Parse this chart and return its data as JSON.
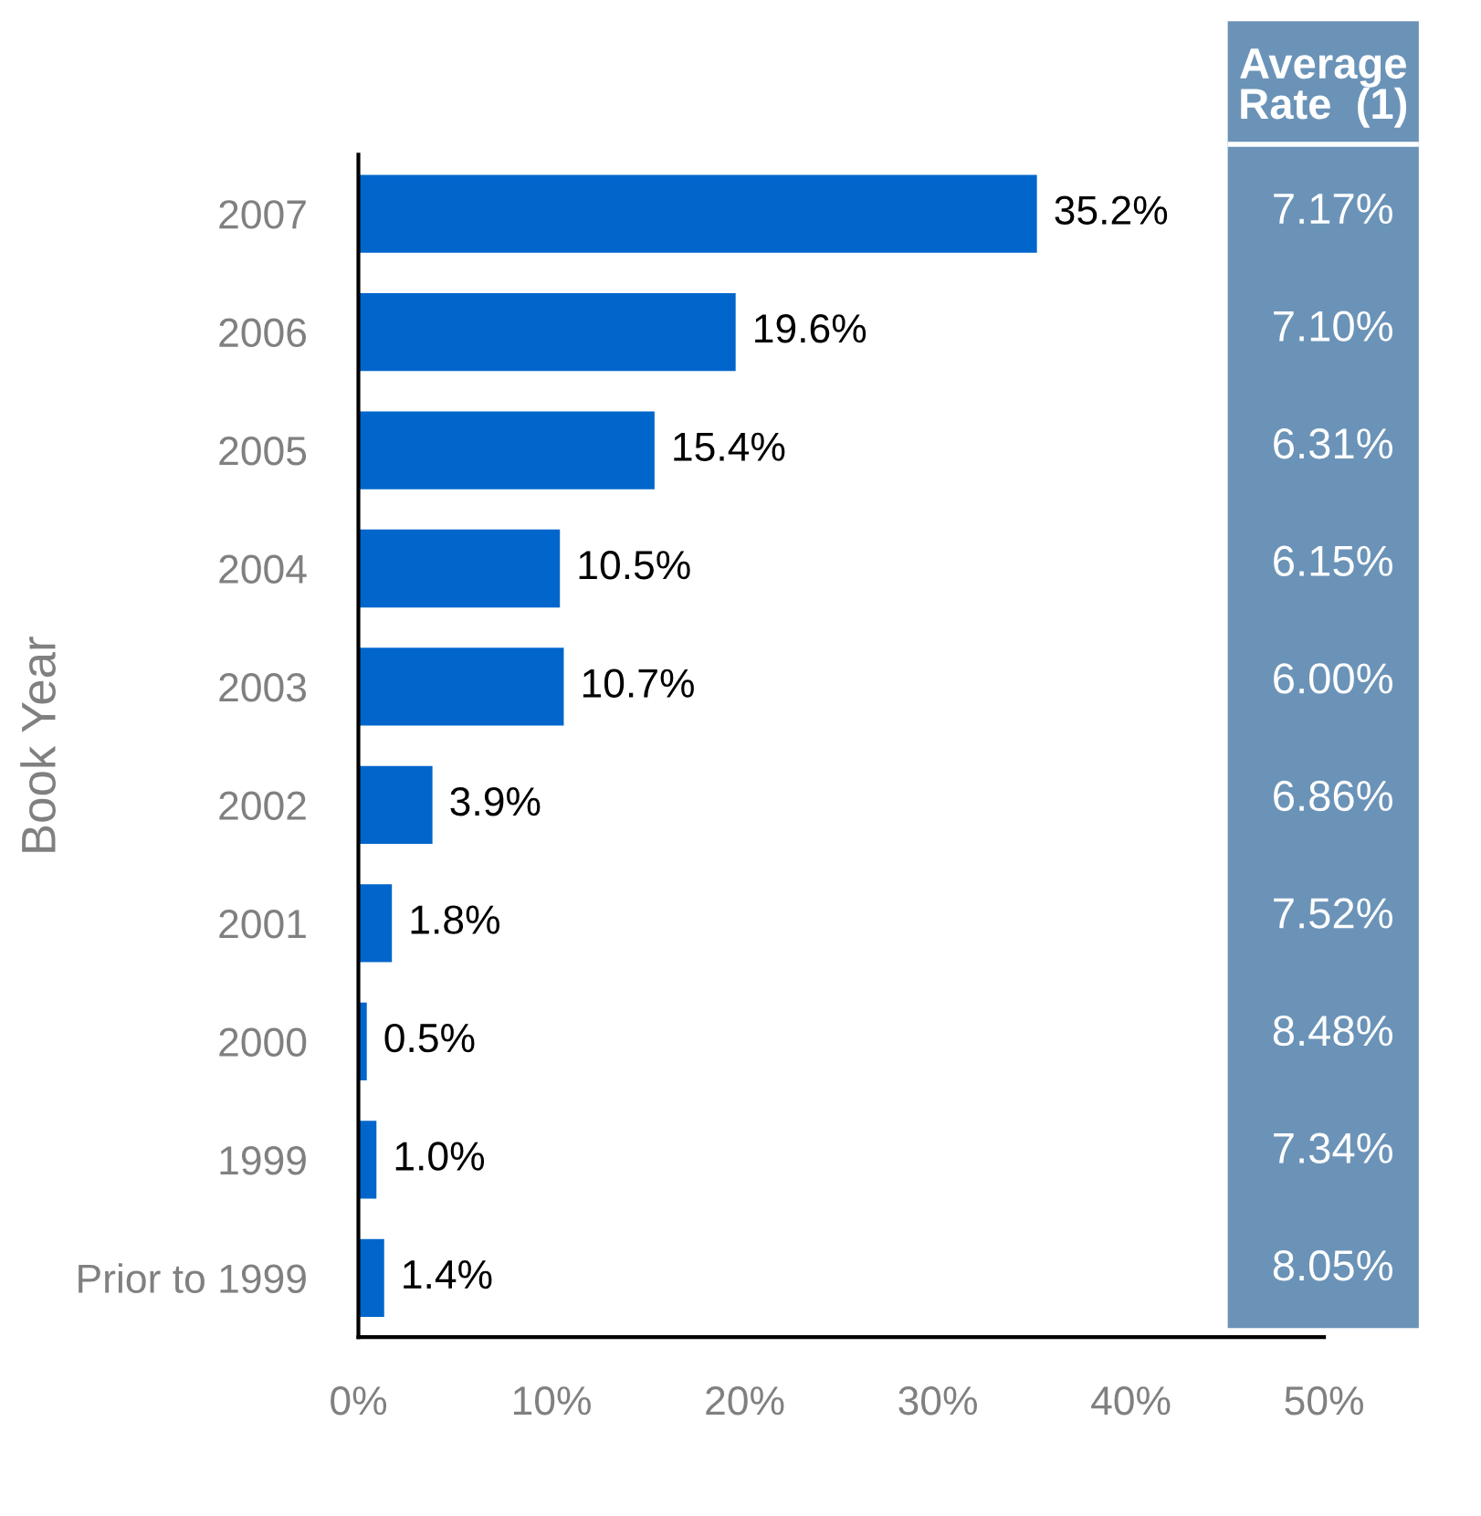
{
  "chart_data": [
    {
      "type": "bar",
      "orientation": "horizontal",
      "ylabel": "Book Year",
      "color": "#0066cc",
      "categories": [
        "2007",
        "2006",
        "2005",
        "2004",
        "2003",
        "2002",
        "2001",
        "2000",
        "1999",
        "Prior to 1999"
      ],
      "values": [
        35.2,
        19.6,
        15.4,
        10.5,
        10.7,
        3.9,
        1.8,
        0.5,
        1.0,
        1.4
      ],
      "value_labels": [
        "35.2%",
        "19.6%",
        "15.4%",
        "10.5%",
        "10.7%",
        "3.9%",
        "1.8%",
        "0.5%",
        "1.0%",
        "1.4%"
      ],
      "xlim": [
        0,
        50
      ],
      "xticks": [
        {
          "value": 0,
          "label": "0%"
        },
        {
          "value": 10,
          "label": "10%"
        },
        {
          "value": 20,
          "label": "20%"
        },
        {
          "value": 30,
          "label": "30%"
        },
        {
          "value": 40,
          "label": "40%"
        },
        {
          "value": 50,
          "label": "50%"
        }
      ],
      "grid": false
    },
    {
      "type": "other",
      "title": "Average\nRate  (1)",
      "color": "#6b93b8",
      "annotations": [
        "7.17%",
        "7.10%",
        "6.31%",
        "6.15%",
        "6.00%",
        "6.86%",
        "7.52%",
        "8.48%",
        "7.34%",
        "8.05%"
      ]
    }
  ]
}
